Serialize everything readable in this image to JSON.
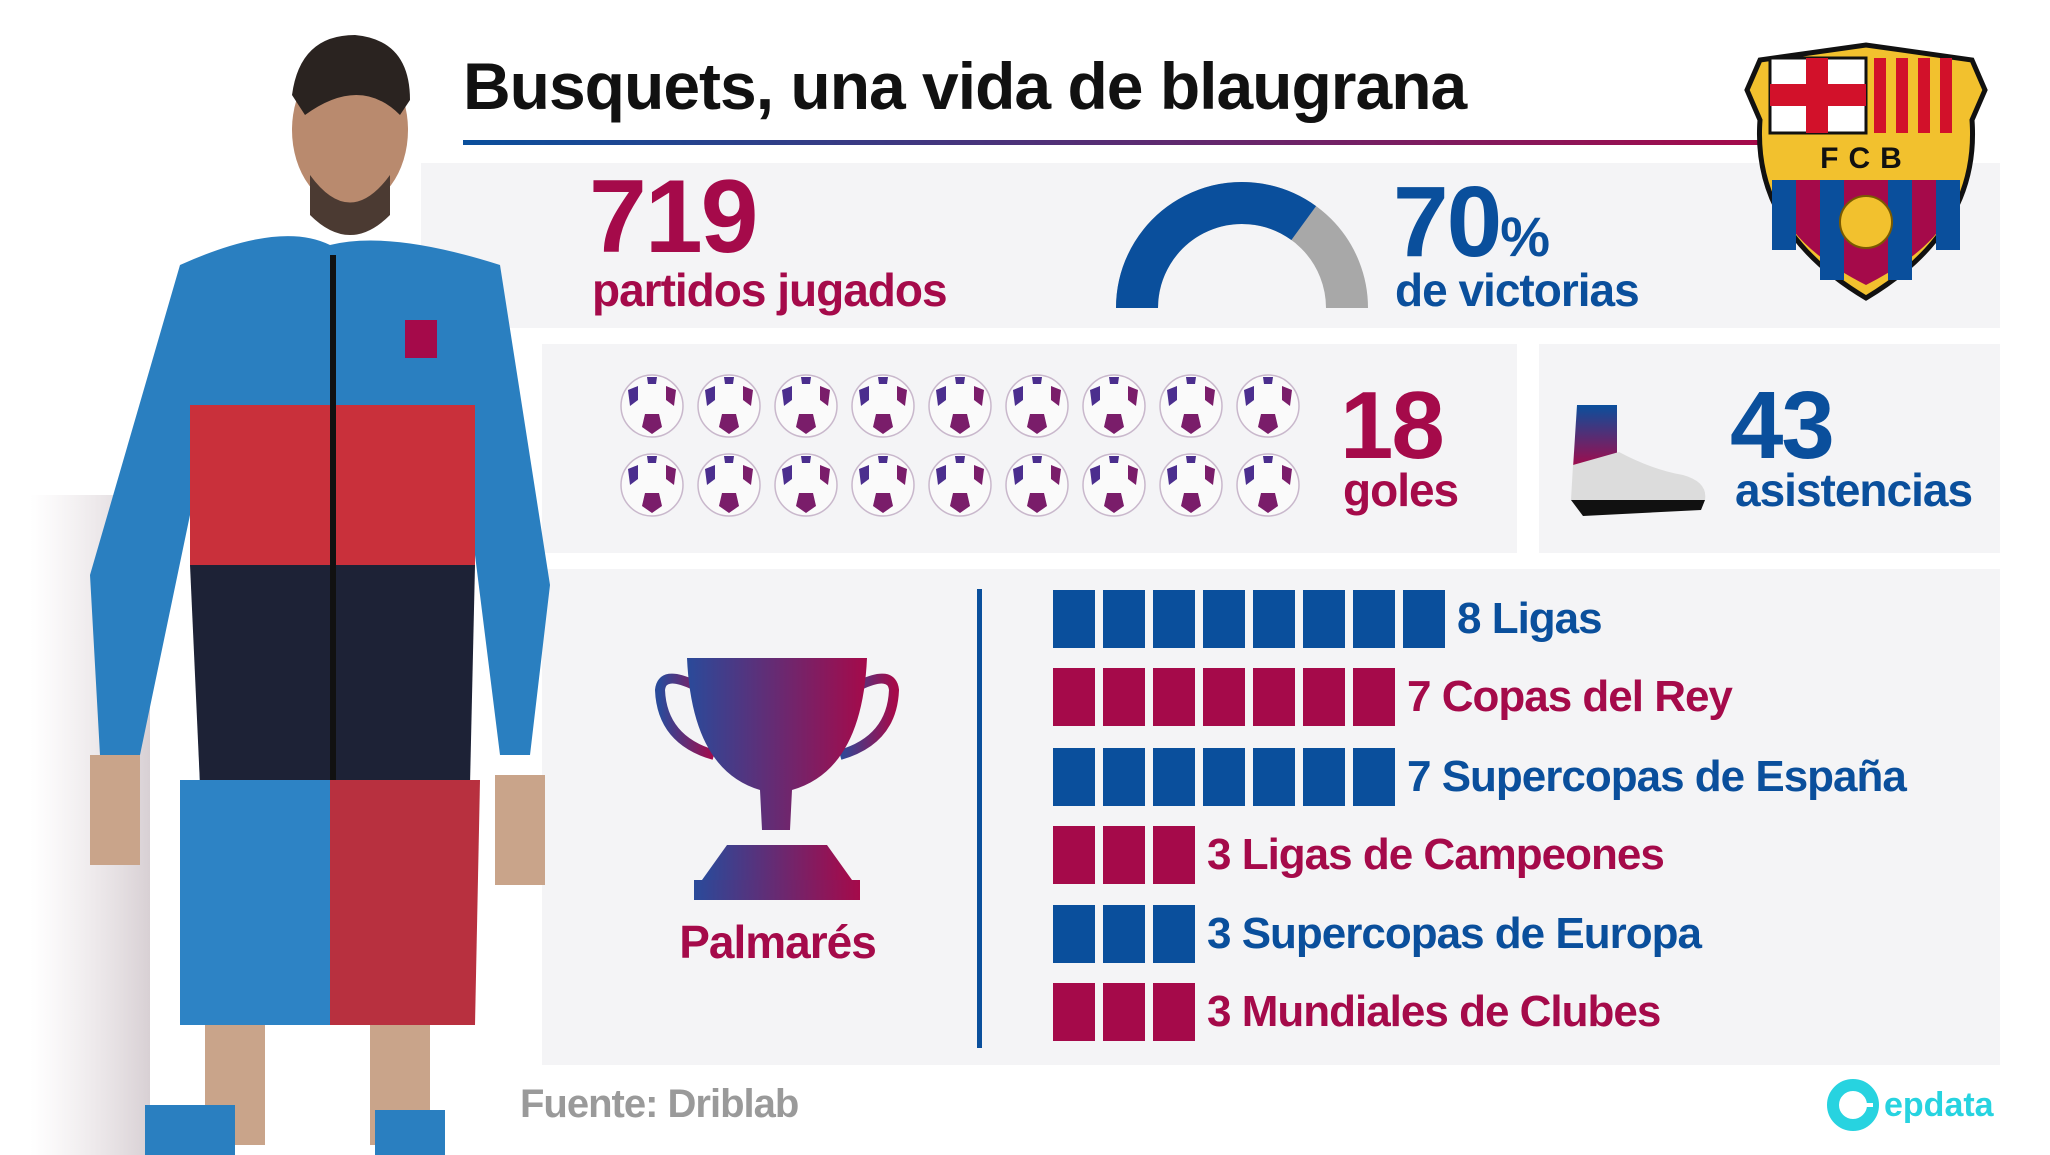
{
  "title": "Busquets, una vida de blaugrana",
  "crest": {
    "letters": "FCB"
  },
  "matches": {
    "value": "719",
    "label": "partidos jugados"
  },
  "wins": {
    "value": "70",
    "unit": "%",
    "label": "de victorias",
    "percent": 70
  },
  "goals": {
    "value": "18",
    "label": "goles",
    "ball_count": 18
  },
  "assists": {
    "value": "43",
    "label": "asistencias"
  },
  "palmares": {
    "label": "Palmarés",
    "items": [
      {
        "count": 8,
        "label": "8 Ligas",
        "color": "#0a4f9c"
      },
      {
        "count": 7,
        "label": "7 Copas del Rey",
        "color": "#a50a4a"
      },
      {
        "count": 7,
        "label": "7 Supercopas de España",
        "color": "#0a4f9c"
      },
      {
        "count": 3,
        "label": "3 Ligas de Campeones",
        "color": "#a50a4a"
      },
      {
        "count": 3,
        "label": "3 Supercopas de Europa",
        "color": "#0a4f9c"
      },
      {
        "count": 3,
        "label": "3 Mundiales de Clubes",
        "color": "#a50a4a"
      }
    ]
  },
  "footer": {
    "source": "Fuente: Driblab",
    "brand": "epdata"
  },
  "colors": {
    "blue": "#0a4f9c",
    "maroon": "#a50a4a",
    "gray": "#a8a8a8"
  }
}
